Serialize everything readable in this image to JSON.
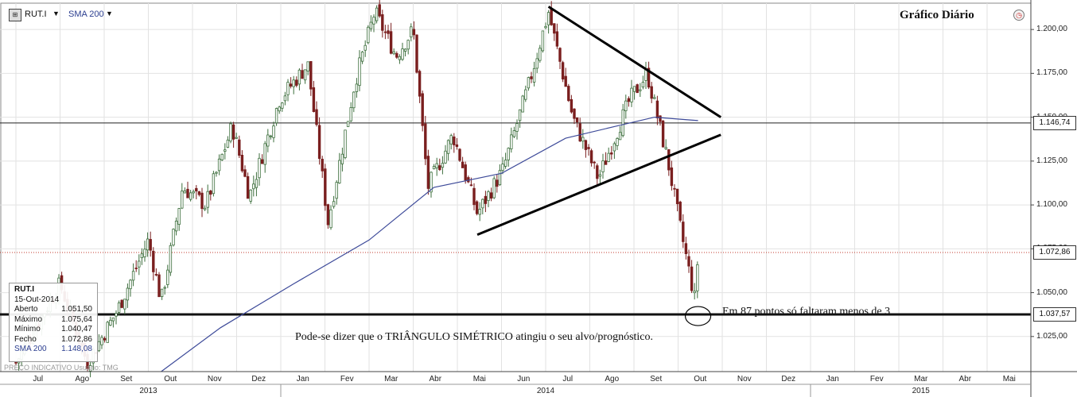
{
  "header": {
    "symbol": "RUT.I",
    "symbol_icon": "chart-icon",
    "indicator": "SMA 200",
    "title": "Gráfico Diário",
    "clock_icon": "clock-icon"
  },
  "info_box": {
    "symbol": "RUT.I",
    "date": "15-Out-2014",
    "rows": [
      {
        "label": "Aberto",
        "value": "1.051,50"
      },
      {
        "label": "Máximo",
        "value": "1.075,64"
      },
      {
        "label": "Mínimo",
        "value": "1.040,47"
      },
      {
        "label": "Fecho",
        "value": "1.072,86"
      },
      {
        "label": "SMA 200",
        "value": "1.148,08"
      }
    ]
  },
  "footer_note": "PREÇO INDICATIVO  Usuário: TMG",
  "annotations": {
    "target_note": "Em 87 pontos só faltaram menos de 3",
    "triangle_note": "Pode-se dizer que o TRIÂNGULO SIMÉTRICO atingiu o seu alvo/prognóstico."
  },
  "colors": {
    "up_candle": "#3c6e3c",
    "down_candle": "#7a1f1f",
    "sma": "#3d4a99",
    "price_line": "#c0392b",
    "axis": "#333333"
  },
  "chart_data": {
    "type": "candlestick",
    "title": "Gráfico Diário",
    "symbol": "RUT.I",
    "y_axis": {
      "min": 1005,
      "max": 1215,
      "ticks": [
        1025,
        1050,
        1075,
        1100,
        1125,
        1150,
        1175,
        1200
      ],
      "tick_labels": [
        "1.025,00",
        "1.050,00",
        "1.075,00",
        "1.100,00",
        "1.125,00",
        "1.150,00",
        "1.175,00",
        "1.200,00"
      ],
      "highlighted_labels": [
        {
          "value": 1146.74,
          "label": "1.146,74",
          "style": "horizontal-line"
        },
        {
          "value": 1072.86,
          "label": "1.072,86",
          "style": "dotted-price-line"
        },
        {
          "value": 1037.57,
          "label": "1.037,57",
          "style": "thick-horizontal-line"
        }
      ]
    },
    "x_axis": {
      "months": [
        "Jul",
        "Ago",
        "Set",
        "Out",
        "Nov",
        "Dez",
        "Jan",
        "Fev",
        "Mar",
        "Abr",
        "Mai",
        "Jun",
        "Jul",
        "Ago",
        "Set",
        "Out",
        "Nov",
        "Dez",
        "Jan",
        "Fev",
        "Mar",
        "Abr",
        "Mai"
      ],
      "years": [
        "2013",
        "2014",
        "2015"
      ]
    },
    "price_path": [
      [
        "2013-07-01",
        1010
      ],
      [
        "2013-08-01",
        1055
      ],
      [
        "2013-08-20",
        1010
      ],
      [
        "2013-09-10",
        1040
      ],
      [
        "2013-10-01",
        1080
      ],
      [
        "2013-10-10",
        1045
      ],
      [
        "2013-10-25",
        1110
      ],
      [
        "2013-11-10",
        1100
      ],
      [
        "2013-11-28",
        1145
      ],
      [
        "2013-12-10",
        1105
      ],
      [
        "2013-12-31",
        1160
      ],
      [
        "2014-01-20",
        1180
      ],
      [
        "2014-02-03",
        1090
      ],
      [
        "2014-02-20",
        1170
      ],
      [
        "2014-03-05",
        1210
      ],
      [
        "2014-03-20",
        1185
      ],
      [
        "2014-04-01",
        1200
      ],
      [
        "2014-04-11",
        1110
      ],
      [
        "2014-04-28",
        1140
      ],
      [
        "2014-05-15",
        1095
      ],
      [
        "2014-06-02",
        1120
      ],
      [
        "2014-06-20",
        1170
      ],
      [
        "2014-07-03",
        1210
      ],
      [
        "2014-07-20",
        1150
      ],
      [
        "2014-08-07",
        1115
      ],
      [
        "2014-08-29",
        1160
      ],
      [
        "2014-09-10",
        1175
      ],
      [
        "2014-09-24",
        1125
      ],
      [
        "2014-10-03",
        1085
      ],
      [
        "2014-10-13",
        1045
      ],
      [
        "2014-10-15",
        1072.86
      ]
    ],
    "sma_200": [
      [
        "2013-10-10",
        1005
      ],
      [
        "2013-11-20",
        1030
      ],
      [
        "2014-01-10",
        1055
      ],
      [
        "2014-03-01",
        1080
      ],
      [
        "2014-04-15",
        1110
      ],
      [
        "2014-06-01",
        1118
      ],
      [
        "2014-07-15",
        1138
      ],
      [
        "2014-08-20",
        1145
      ],
      [
        "2014-09-15",
        1150
      ],
      [
        "2014-10-15",
        1148.08
      ]
    ],
    "triangle": {
      "upper": [
        [
          "2014-07-03",
          1213
        ],
        [
          "2014-10-31",
          1150
        ]
      ],
      "lower": [
        [
          "2014-05-15",
          1083
        ],
        [
          "2014-10-31",
          1140
        ]
      ]
    },
    "target_circle": [
      "2014-10-15",
      1038
    ]
  }
}
